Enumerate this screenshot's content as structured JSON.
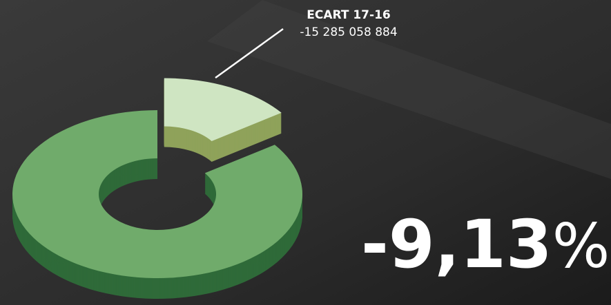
{
  "chart_data": {
    "type": "donut",
    "categories": [
      "ECART 17-16",
      null
    ],
    "values": [
      15,
      85
    ],
    "colors": [
      "#cfe5c2",
      "#70ab6b"
    ],
    "side_colors": [
      "#8fa25a",
      "#2f6a39"
    ],
    "exploded": [
      true,
      false
    ],
    "annotation": {
      "title": "ECART 17-16",
      "text": "-15 285 058 884"
    },
    "headline": {
      "number": "-9,13",
      "unit": "%"
    }
  }
}
